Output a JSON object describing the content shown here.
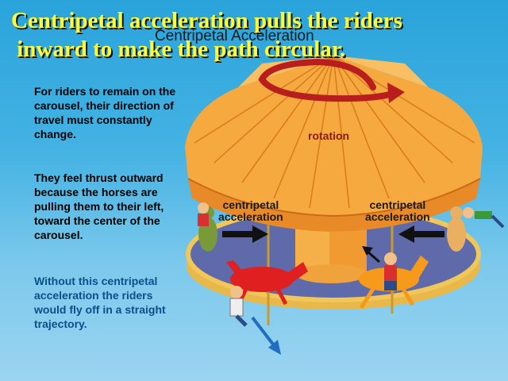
{
  "overlay_title": "Centripetal acceleration pulls the riders\n inward to make the path circular.",
  "diagram_title": "Centripetal Acceleration",
  "paragraphs": {
    "p1": "For riders to remain on the carousel, their direction of travel must constantly change.",
    "p2": "They feel thrust outward because the horses are pulling them to their left, toward the center of the carousel.",
    "p3": "Without this centripetal acceleration the riders would fly off in a straight trajectory."
  },
  "labels": {
    "rotation": "rotation",
    "centripetal_left": "centripetal\nacceleration",
    "centripetal_right": "centripetal\nacceleration"
  },
  "colors": {
    "title": "#ffff33",
    "canopy": "#f5a53a",
    "platform": "#5b67a8",
    "arrow_rotation": "#b81e1e",
    "horse": "#e02020"
  }
}
